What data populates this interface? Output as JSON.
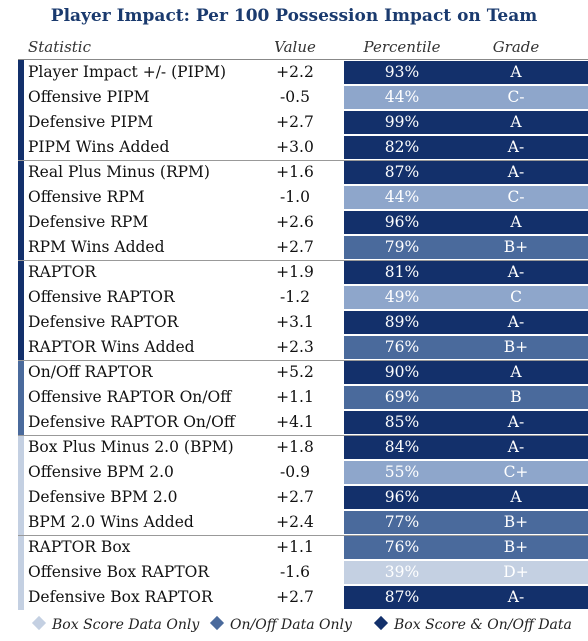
{
  "title": "Player Impact: Per 100 Possession Impact on Team",
  "headers": {
    "statistic": "Statistic",
    "value": "Value",
    "percentile": "Percentile",
    "grade": "Grade"
  },
  "colors": {
    "dark": "#13306b",
    "mid": "#4a6a9c",
    "light": "#8ea6cb",
    "pale": "#c4d0e2"
  },
  "rows": [
    {
      "stat": "Player Impact +/- (PIPM)",
      "value": "+2.2",
      "percentile": "93%",
      "grade": "A",
      "shade": "dark",
      "group": "both"
    },
    {
      "stat": "Offensive PIPM",
      "value": "-0.5",
      "percentile": "44%",
      "grade": "C-",
      "shade": "light",
      "group": "both"
    },
    {
      "stat": "Defensive PIPM",
      "value": "+2.7",
      "percentile": "99%",
      "grade": "A",
      "shade": "dark",
      "group": "both"
    },
    {
      "stat": "PIPM Wins Added",
      "value": "+3.0",
      "percentile": "82%",
      "grade": "A-",
      "shade": "dark",
      "group": "both"
    },
    {
      "stat": "Real Plus Minus (RPM)",
      "value": "+1.6",
      "percentile": "87%",
      "grade": "A-",
      "shade": "dark",
      "group": "both"
    },
    {
      "stat": "Offensive RPM",
      "value": "-1.0",
      "percentile": "44%",
      "grade": "C-",
      "shade": "light",
      "group": "both"
    },
    {
      "stat": "Defensive RPM",
      "value": "+2.6",
      "percentile": "96%",
      "grade": "A",
      "shade": "dark",
      "group": "both"
    },
    {
      "stat": "RPM Wins Added",
      "value": "+2.7",
      "percentile": "79%",
      "grade": "B+",
      "shade": "mid",
      "group": "both"
    },
    {
      "stat": "RAPTOR",
      "value": "+1.9",
      "percentile": "81%",
      "grade": "A-",
      "shade": "dark",
      "group": "both"
    },
    {
      "stat": "Offensive RAPTOR",
      "value": "-1.2",
      "percentile": "49%",
      "grade": "C",
      "shade": "light",
      "group": "both"
    },
    {
      "stat": "Defensive RAPTOR",
      "value": "+3.1",
      "percentile": "89%",
      "grade": "A-",
      "shade": "dark",
      "group": "both"
    },
    {
      "stat": "RAPTOR Wins Added",
      "value": "+2.3",
      "percentile": "76%",
      "grade": "B+",
      "shade": "mid",
      "group": "both"
    },
    {
      "stat": "On/Off RAPTOR",
      "value": "+5.2",
      "percentile": "90%",
      "grade": "A",
      "shade": "dark",
      "group": "onoff"
    },
    {
      "stat": "Offensive RAPTOR On/Off",
      "value": "+1.1",
      "percentile": "69%",
      "grade": "B",
      "shade": "mid",
      "group": "onoff"
    },
    {
      "stat": "Defensive RAPTOR On/Off",
      "value": "+4.1",
      "percentile": "85%",
      "grade": "A-",
      "shade": "dark",
      "group": "onoff"
    },
    {
      "stat": "Box Plus Minus 2.0 (BPM)",
      "value": "+1.8",
      "percentile": "84%",
      "grade": "A-",
      "shade": "dark",
      "group": "box"
    },
    {
      "stat": "Offensive BPM 2.0",
      "value": "-0.9",
      "percentile": "55%",
      "grade": "C+",
      "shade": "light",
      "group": "box"
    },
    {
      "stat": "Defensive BPM 2.0",
      "value": "+2.7",
      "percentile": "96%",
      "grade": "A",
      "shade": "dark",
      "group": "box"
    },
    {
      "stat": "BPM 2.0 Wins Added",
      "value": "+2.4",
      "percentile": "77%",
      "grade": "B+",
      "shade": "mid",
      "group": "box"
    },
    {
      "stat": "RAPTOR Box",
      "value": "+1.1",
      "percentile": "76%",
      "grade": "B+",
      "shade": "mid",
      "group": "box"
    },
    {
      "stat": "Offensive Box RAPTOR",
      "value": "-1.6",
      "percentile": "39%",
      "grade": "D+",
      "shade": "pale",
      "group": "box"
    },
    {
      "stat": "Defensive Box RAPTOR",
      "value": "+2.7",
      "percentile": "87%",
      "grade": "A-",
      "shade": "dark",
      "group": "box"
    }
  ],
  "group_colors": {
    "both": "#13306b",
    "onoff": "#4a6a9c",
    "box": "#c4d0e2"
  },
  "separators_after": [
    3,
    7,
    11,
    14,
    18
  ],
  "legend": [
    {
      "label": "Box Score Data Only",
      "color": "#c4d0e2",
      "icon": "diamond-icon"
    },
    {
      "label": "On/Off Data Only",
      "color": "#4a6a9c",
      "icon": "diamond-icon"
    },
    {
      "label": "Box Score & On/Off Data",
      "color": "#13306b",
      "icon": "diamond-icon"
    }
  ]
}
